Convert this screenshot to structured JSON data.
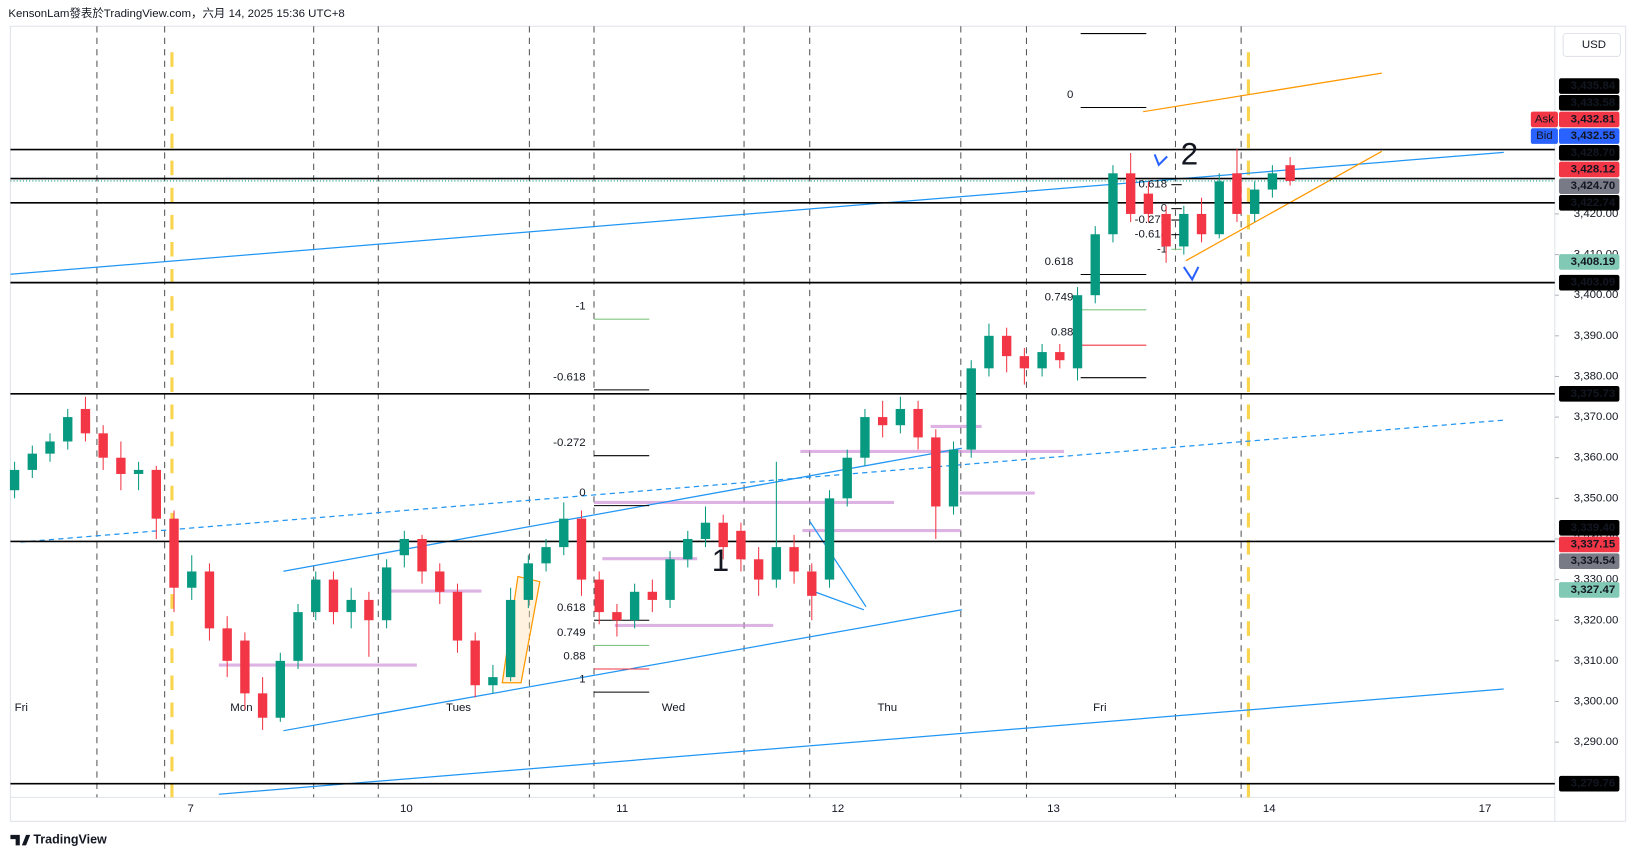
{
  "header": {
    "text": "KensonLam發表於TradingView.com，六月 14, 2025 15:36 UTC+8"
  },
  "footer": {
    "logo": "TradingView"
  },
  "chart_data": {
    "type": "candlestick",
    "currency": "USD",
    "up_color": "#089981",
    "down_color": "#f23645",
    "ylim": [
      3270.5,
      3466.2
    ],
    "yticks": [
      {
        "value": 3290,
        "label": "3,290.00"
      },
      {
        "value": 3300,
        "label": "3,300.00"
      },
      {
        "value": 3310,
        "label": "3,310.00"
      },
      {
        "value": 3320,
        "label": "3,320.00"
      },
      {
        "value": 3330,
        "label": "3,330.00"
      },
      {
        "value": 3340,
        "label": "3,340.00"
      },
      {
        "value": 3350,
        "label": "3,350.00"
      },
      {
        "value": 3360,
        "label": "3,360.00"
      },
      {
        "value": 3370,
        "label": "3,370.00"
      },
      {
        "value": 3380,
        "label": "3,380.00"
      },
      {
        "value": 3390,
        "label": "3,390.00"
      },
      {
        "value": 3400,
        "label": "3,400.00"
      },
      {
        "value": 3410,
        "label": "3,410.00"
      },
      {
        "value": 3420,
        "label": "3,420.00"
      }
    ],
    "x_labels": [
      "7",
      "10",
      "11",
      "12",
      "13",
      "14",
      "17"
    ],
    "day_labels": [
      {
        "text": "Fri",
        "color": "#b2b5be"
      },
      {
        "text": "Mon",
        "color": "#b2b5be"
      },
      {
        "text": "Tues",
        "color": "#f77c80"
      },
      {
        "text": "Wed",
        "color": "#f77c80"
      },
      {
        "text": "Thu",
        "color": "#b2b5be"
      },
      {
        "text": "Fri",
        "color": "#b2b5be"
      }
    ],
    "ohlc": [
      [
        3352,
        3359,
        3350,
        3357
      ],
      [
        3357,
        3363,
        3355,
        3361
      ],
      [
        3361,
        3366,
        3359,
        3364
      ],
      [
        3364,
        3372,
        3362,
        3370
      ],
      [
        3372,
        3375,
        3364,
        3366
      ],
      [
        3366,
        3368,
        3357,
        3360
      ],
      [
        3360,
        3364,
        3352,
        3356
      ],
      [
        3356,
        3359,
        3352,
        3357
      ],
      [
        3357,
        3358,
        3340,
        3345
      ],
      [
        3345,
        3347,
        3322,
        3328
      ],
      [
        3328,
        3336,
        3325,
        3332
      ],
      [
        3332,
        3334,
        3315,
        3318
      ],
      [
        3318,
        3321,
        3306,
        3310
      ],
      [
        3315,
        3317,
        3298,
        3302
      ],
      [
        3302,
        3306,
        3293,
        3296
      ],
      [
        3296,
        3312,
        3295,
        3310
      ],
      [
        3310,
        3324,
        3308,
        3322
      ],
      [
        3322,
        3332,
        3320,
        3330
      ],
      [
        3330,
        3332,
        3319,
        3322
      ],
      [
        3322,
        3328,
        3318,
        3325
      ],
      [
        3325,
        3327,
        3311,
        3320
      ],
      [
        3320,
        3335,
        3318,
        3333
      ],
      [
        3336,
        3342,
        3333,
        3340
      ],
      [
        3340,
        3341,
        3329,
        3332
      ],
      [
        3332,
        3334,
        3324,
        3327
      ],
      [
        3327,
        3329,
        3312,
        3315
      ],
      [
        3315,
        3317,
        3301,
        3304
      ],
      [
        3304,
        3309,
        3302,
        3306
      ],
      [
        3306,
        3328,
        3305,
        3325
      ],
      [
        3325,
        3336,
        3323,
        3334
      ],
      [
        3334,
        3340,
        3332,
        3338
      ],
      [
        3338,
        3349,
        3336,
        3345
      ],
      [
        3345,
        3347,
        3326,
        3330
      ],
      [
        3330,
        3332,
        3319,
        3322
      ],
      [
        3322,
        3324,
        3316,
        3320
      ],
      [
        3320,
        3329,
        3318,
        3327
      ],
      [
        3327,
        3330,
        3322,
        3325
      ],
      [
        3325,
        3337,
        3323,
        3335
      ],
      [
        3335,
        3342,
        3333,
        3340
      ],
      [
        3340,
        3348,
        3338,
        3344
      ],
      [
        3344,
        3346,
        3335,
        3338
      ],
      [
        3342,
        3344,
        3332,
        3335
      ],
      [
        3335,
        3338,
        3326,
        3330
      ],
      [
        3330,
        3359,
        3328,
        3338
      ],
      [
        3338,
        3341,
        3329,
        3332
      ],
      [
        3332,
        3334,
        3320,
        3326
      ],
      [
        3330,
        3352,
        3328,
        3350
      ],
      [
        3350,
        3362,
        3348,
        3360
      ],
      [
        3360,
        3372,
        3358,
        3370
      ],
      [
        3370,
        3374,
        3365,
        3368
      ],
      [
        3368,
        3375,
        3366,
        3372
      ],
      [
        3372,
        3374,
        3362,
        3365
      ],
      [
        3365,
        3367,
        3340,
        3348
      ],
      [
        3348,
        3364,
        3346,
        3362
      ],
      [
        3362,
        3384,
        3360,
        3382
      ],
      [
        3382,
        3393,
        3380,
        3390
      ],
      [
        3390,
        3392,
        3381,
        3385
      ],
      [
        3385,
        3387,
        3378,
        3382
      ],
      [
        3382,
        3388,
        3380,
        3386
      ],
      [
        3386,
        3388,
        3382,
        3384
      ],
      [
        3382,
        3402,
        3379,
        3400
      ],
      [
        3400,
        3417,
        3398,
        3415
      ],
      [
        3415,
        3432,
        3413,
        3430
      ],
      [
        3430,
        3435,
        3418,
        3420
      ],
      [
        3425,
        3428,
        3418,
        3420
      ],
      [
        3420,
        3422,
        3408,
        3412
      ],
      [
        3412,
        3422,
        3410,
        3420
      ],
      [
        3420,
        3424,
        3413,
        3415
      ],
      [
        3415,
        3430,
        3414,
        3428
      ],
      [
        3430,
        3436,
        3418,
        3420
      ],
      [
        3420,
        3428,
        3418,
        3426
      ],
      [
        3426,
        3432,
        3424,
        3430
      ],
      [
        3432,
        3434,
        3427,
        3428.12
      ]
    ],
    "price_labels": [
      {
        "value": 3435.84,
        "label": "3,435.84",
        "color": "#000000",
        "line": true
      },
      {
        "value": 3433.58,
        "label": "3,433.58",
        "color": "#000000",
        "line": false
      },
      {
        "value": 3432.81,
        "label": "3,432.81",
        "color": "#f23645",
        "tag": "Ask",
        "line": false
      },
      {
        "value": 3432.55,
        "label": "3,432.55",
        "color": "#2962ff",
        "tag": "Bid",
        "line": false
      },
      {
        "value": 3428.7,
        "label": "3,428.70",
        "color": "#000000",
        "line": true
      },
      {
        "value": 3428.12,
        "label": "3,428.12",
        "color": "#f23645",
        "line": false
      },
      {
        "value": 3424.7,
        "label": "3,424.70",
        "color": "#787b86",
        "line": false
      },
      {
        "value": 3422.74,
        "label": "3,422.74",
        "color": "#000000",
        "line": true
      },
      {
        "value": 3408.19,
        "label": "3,408.19",
        "color": "#81c9b5",
        "line": false
      },
      {
        "value": 3403.09,
        "label": "3,403.09",
        "color": "#000000",
        "line": true
      },
      {
        "value": 3375.73,
        "label": "3,375.73",
        "color": "#000000",
        "line": true
      },
      {
        "value": 3339.4,
        "label": "3,339.40",
        "color": "#000000",
        "line": true
      },
      {
        "value": 3337.15,
        "label": "3,337.15",
        "color": "#f23645",
        "line": false
      },
      {
        "value": 3334.54,
        "label": "3,334.54",
        "color": "#787b86",
        "line": false
      },
      {
        "value": 3327.47,
        "label": "3,327.47",
        "color": "#81c9b5",
        "line": false
      },
      {
        "value": 3279.76,
        "label": "3,279.76",
        "color": "#000000",
        "line": true
      }
    ],
    "fib_groups": [
      {
        "labels": [
          null,
          "0",
          "0.618",
          "0.749",
          "0.88",
          null
        ],
        "prices": [
          3464.4,
          3446.2,
          3405.1,
          3396.4,
          3387.7,
          3379.7
        ],
        "colors": [
          "#000000",
          "#000000",
          "#000000",
          "#81c784",
          "#f23645",
          "#000000"
        ]
      },
      {
        "labels": [
          "-1",
          "-0.618",
          "-0.272",
          "0",
          "0.618",
          "0.749",
          "0.88",
          "1"
        ],
        "prices": [
          3394.1,
          3376.7,
          3360.5,
          3348.2,
          3320,
          3313.8,
          3308,
          3302.3
        ],
        "colors": [
          "#81c784",
          "#000000",
          "#000000",
          "#000000",
          "#000000",
          "#81c784",
          "#f23645",
          "#000000"
        ]
      },
      {
        "labels": [
          "0.618",
          "0",
          "-0.272",
          "-0.618",
          "-1"
        ],
        "prices": [
          3427.2,
          3421.3,
          3418.5,
          3414.9,
          3411.3
        ],
        "colors": [
          "#000000",
          "#000000",
          "#000000",
          "#000000",
          "#81c784"
        ]
      }
    ],
    "annotations": [
      "1",
      "2"
    ]
  }
}
